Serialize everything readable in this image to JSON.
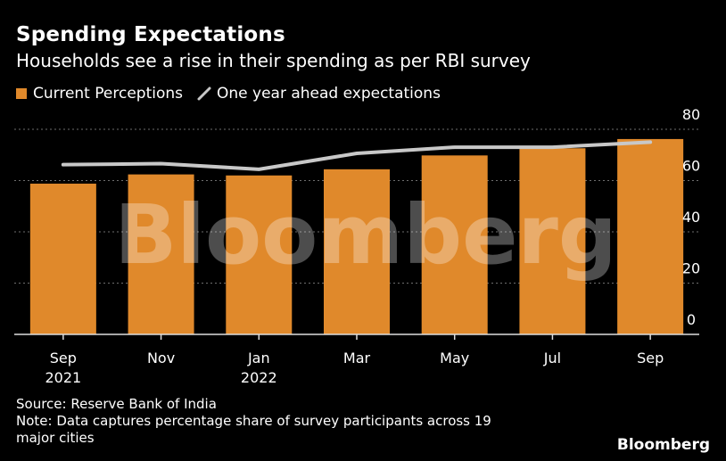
{
  "header": {
    "title": "Spending Expectations",
    "subtitle": "Households see a rise in their spending as per RBI survey"
  },
  "legend": {
    "bar_label": "Current Perceptions",
    "line_label": "One year ahead expectations"
  },
  "colors": {
    "bar": "#E0892B",
    "line": "#C8C8C8",
    "grid": "#6e6e6e"
  },
  "watermark": {
    "text": "Bloomberg"
  },
  "chart_data": {
    "type": "bar",
    "categories": [
      "Sep 2021",
      "Nov",
      "Jan 2022",
      "Mar",
      "May",
      "Jul",
      "Sep"
    ],
    "x_tick_lines": [
      [
        "Sep",
        "2021"
      ],
      [
        "Nov"
      ],
      [
        "Jan",
        "2022"
      ],
      [
        "Mar"
      ],
      [
        "May"
      ],
      [
        "Jul"
      ],
      [
        "Sep"
      ]
    ],
    "series": [
      {
        "name": "Current Perceptions",
        "type": "bar",
        "values": [
          58.8,
          62.4,
          62.0,
          64.4,
          69.8,
          72.6,
          76.2
        ]
      },
      {
        "name": "One year ahead expectations",
        "type": "line",
        "values": [
          66.2,
          66.6,
          64.4,
          70.6,
          73.0,
          73.0,
          75.0
        ]
      }
    ],
    "ylim": [
      0,
      80
    ],
    "yticks": [
      0,
      20,
      40,
      60,
      80
    ],
    "grid": true,
    "legend_position": "top-left"
  },
  "footer": {
    "source": "Source: Reserve Bank of India",
    "note": "Note: Data captures percentage share of survey participants across 19 major cities",
    "brand": "Bloomberg"
  }
}
